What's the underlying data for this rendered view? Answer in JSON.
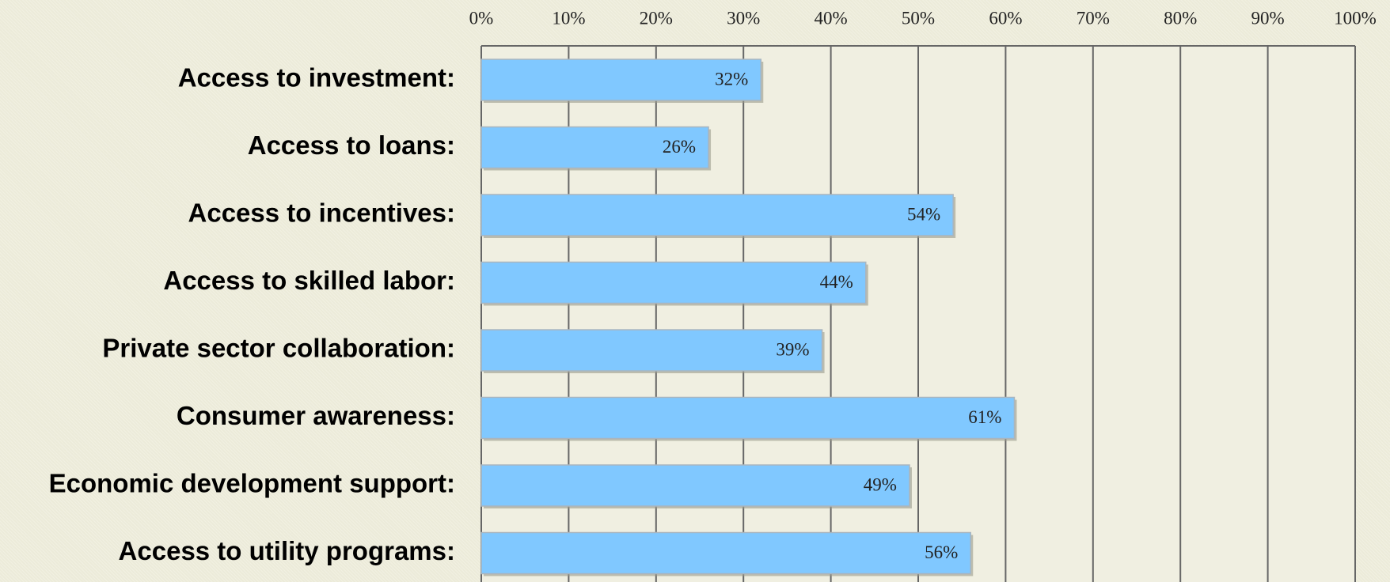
{
  "chart_data": {
    "type": "bar",
    "orientation": "horizontal",
    "categories": [
      "Access to investment:",
      "Access to loans:",
      "Access to incentives:",
      "Access to skilled labor:",
      "Private sector collaboration:",
      "Consumer awareness:",
      "Economic development support:",
      "Access to utility programs:"
    ],
    "values": [
      32,
      26,
      54,
      44,
      39,
      61,
      49,
      56
    ],
    "value_labels": [
      "32%",
      "26%",
      "54%",
      "44%",
      "39%",
      "61%",
      "49%",
      "56%"
    ],
    "color": "#80c8ff",
    "xlim": [
      0,
      100
    ],
    "xticks": [
      {
        "value": 0,
        "label": "0%"
      },
      {
        "value": 10,
        "label": "10%"
      },
      {
        "value": 20,
        "label": "20%"
      },
      {
        "value": 30,
        "label": "30%"
      },
      {
        "value": 40,
        "label": "40%"
      },
      {
        "value": 50,
        "label": "50%"
      },
      {
        "value": 60,
        "label": "60%"
      },
      {
        "value": 70,
        "label": "70%"
      },
      {
        "value": 80,
        "label": "80%"
      },
      {
        "value": 90,
        "label": "90%"
      },
      {
        "value": 100,
        "label": "100%"
      }
    ],
    "grid": true
  }
}
